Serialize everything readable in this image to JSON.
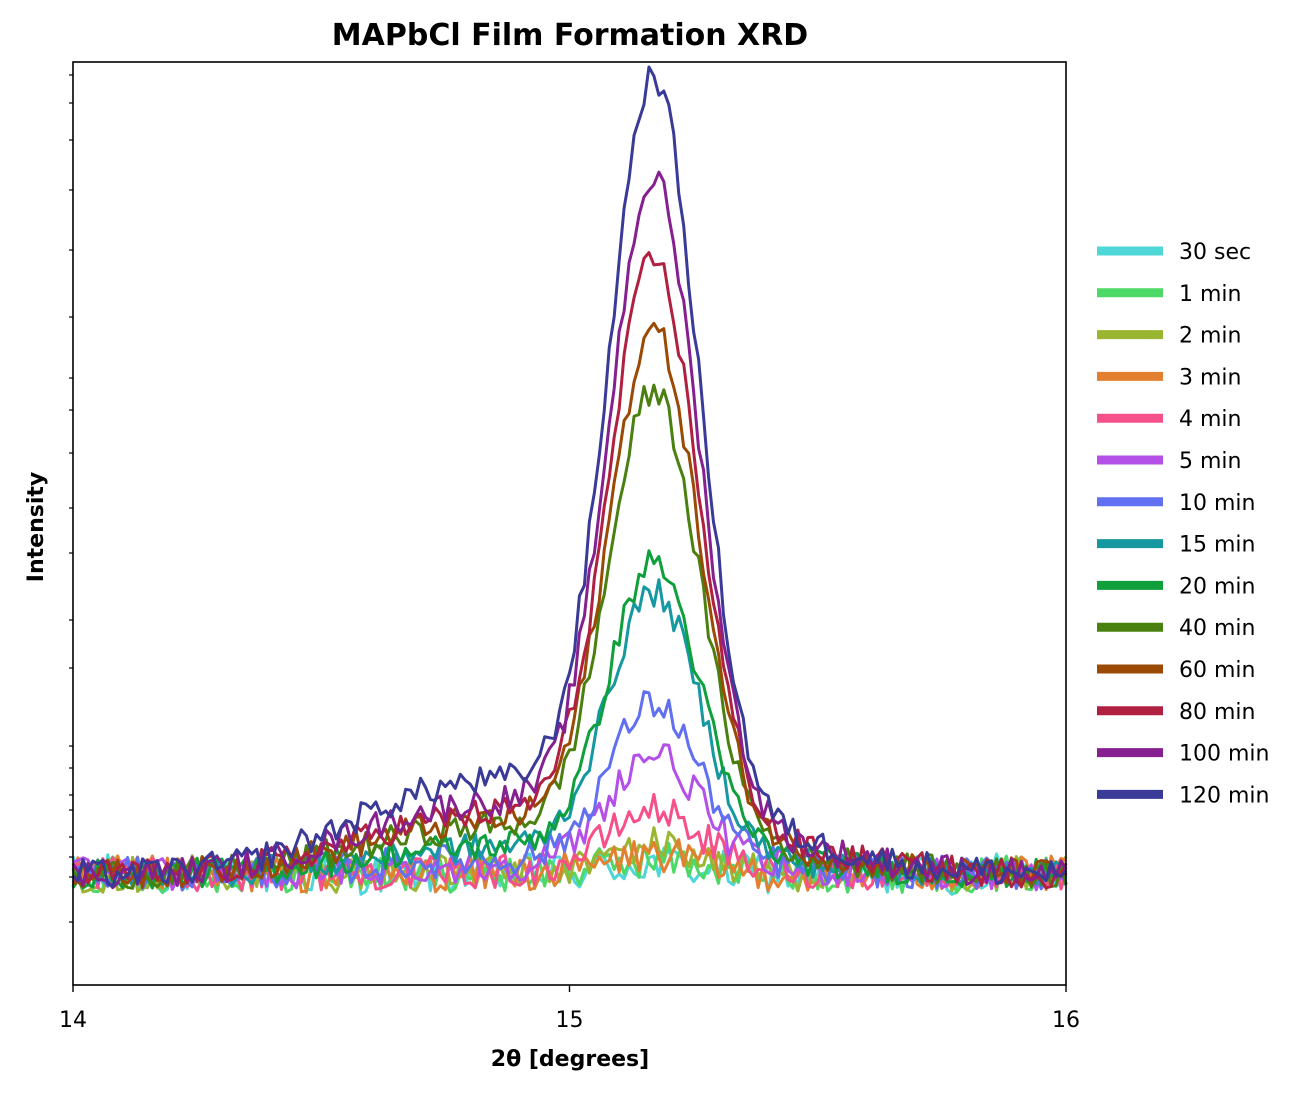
{
  "chart_data": {
    "type": "line",
    "title": "MAPbCl Film Formation XRD",
    "xlabel": "2θ [degrees]",
    "ylabel": "Intensity",
    "xlim": [
      14,
      16
    ],
    "ylim": [
      0,
      100
    ],
    "x_ticks": [
      "14",
      "15",
      "16"
    ],
    "y_tick_labels_visible": false,
    "grid": false,
    "legend_placement": "right, outside plot",
    "peak": {
      "center": 15.17
    },
    "series": [
      {
        "name": "30 sec",
        "color": "#4fd6d6",
        "amplitude": 1.0,
        "shoulder": 0.0,
        "noise": 2.2
      },
      {
        "name": "1 min",
        "color": "#4cd965",
        "amplitude": 1.5,
        "shoulder": 0.0,
        "noise": 2.0
      },
      {
        "name": "2 min",
        "color": "#9ab530",
        "amplitude": 3.0,
        "shoulder": 0.0,
        "noise": 2.0
      },
      {
        "name": "3 min",
        "color": "#e38030",
        "amplitude": 2.0,
        "shoulder": 0.0,
        "noise": 2.0
      },
      {
        "name": "4 min",
        "color": "#f5508a",
        "amplitude": 6.5,
        "shoulder": 0.0,
        "noise": 1.8
      },
      {
        "name": "5 min",
        "color": "#b44fe8",
        "amplitude": 12.0,
        "shoulder": 0.5,
        "noise": 1.8
      },
      {
        "name": "10 min",
        "color": "#6070f0",
        "amplitude": 17.0,
        "shoulder": 1.0,
        "noise": 1.8
      },
      {
        "name": "15 min",
        "color": "#15989f",
        "amplitude": 28.0,
        "shoulder": 2.0,
        "noise": 1.6
      },
      {
        "name": "20 min",
        "color": "#0fa03c",
        "amplitude": 31.0,
        "shoulder": 2.0,
        "noise": 1.6
      },
      {
        "name": "40 min",
        "color": "#4a8010",
        "amplitude": 48.0,
        "shoulder": 3.5,
        "noise": 1.6
      },
      {
        "name": "60 min",
        "color": "#9a4a05",
        "amplitude": 54.0,
        "shoulder": 4.0,
        "noise": 1.6
      },
      {
        "name": "80 min",
        "color": "#b02040",
        "amplitude": 61.0,
        "shoulder": 4.5,
        "noise": 1.6
      },
      {
        "name": "100 min",
        "color": "#862090",
        "amplitude": 69.0,
        "shoulder": 5.5,
        "noise": 1.6
      },
      {
        "name": "120 min",
        "color": "#3a3a98",
        "amplitude": 79.0,
        "shoulder": 7.5,
        "noise": 1.6
      }
    ]
  }
}
